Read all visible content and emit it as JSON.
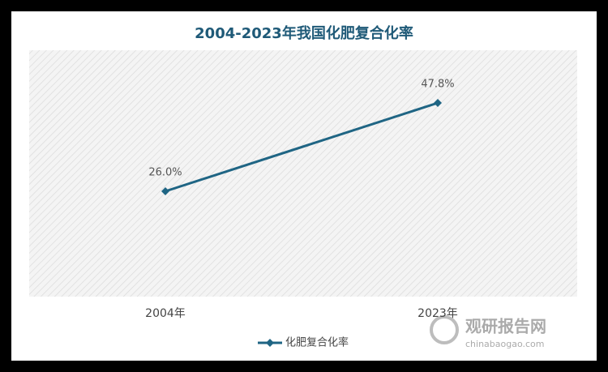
{
  "chart_data": {
    "type": "line",
    "title": "2004-2023年我国化肥复合化率",
    "categories": [
      "2004年",
      "2023年"
    ],
    "series": [
      {
        "name": "化肥复合化率",
        "color": "#1f6584",
        "values": [
          26.0,
          47.8
        ],
        "value_labels": [
          "26.0%",
          "47.8%"
        ]
      }
    ],
    "legend": "bottom"
  },
  "watermark": {
    "name": "观研报告网",
    "url": "chinabaogao.com"
  }
}
